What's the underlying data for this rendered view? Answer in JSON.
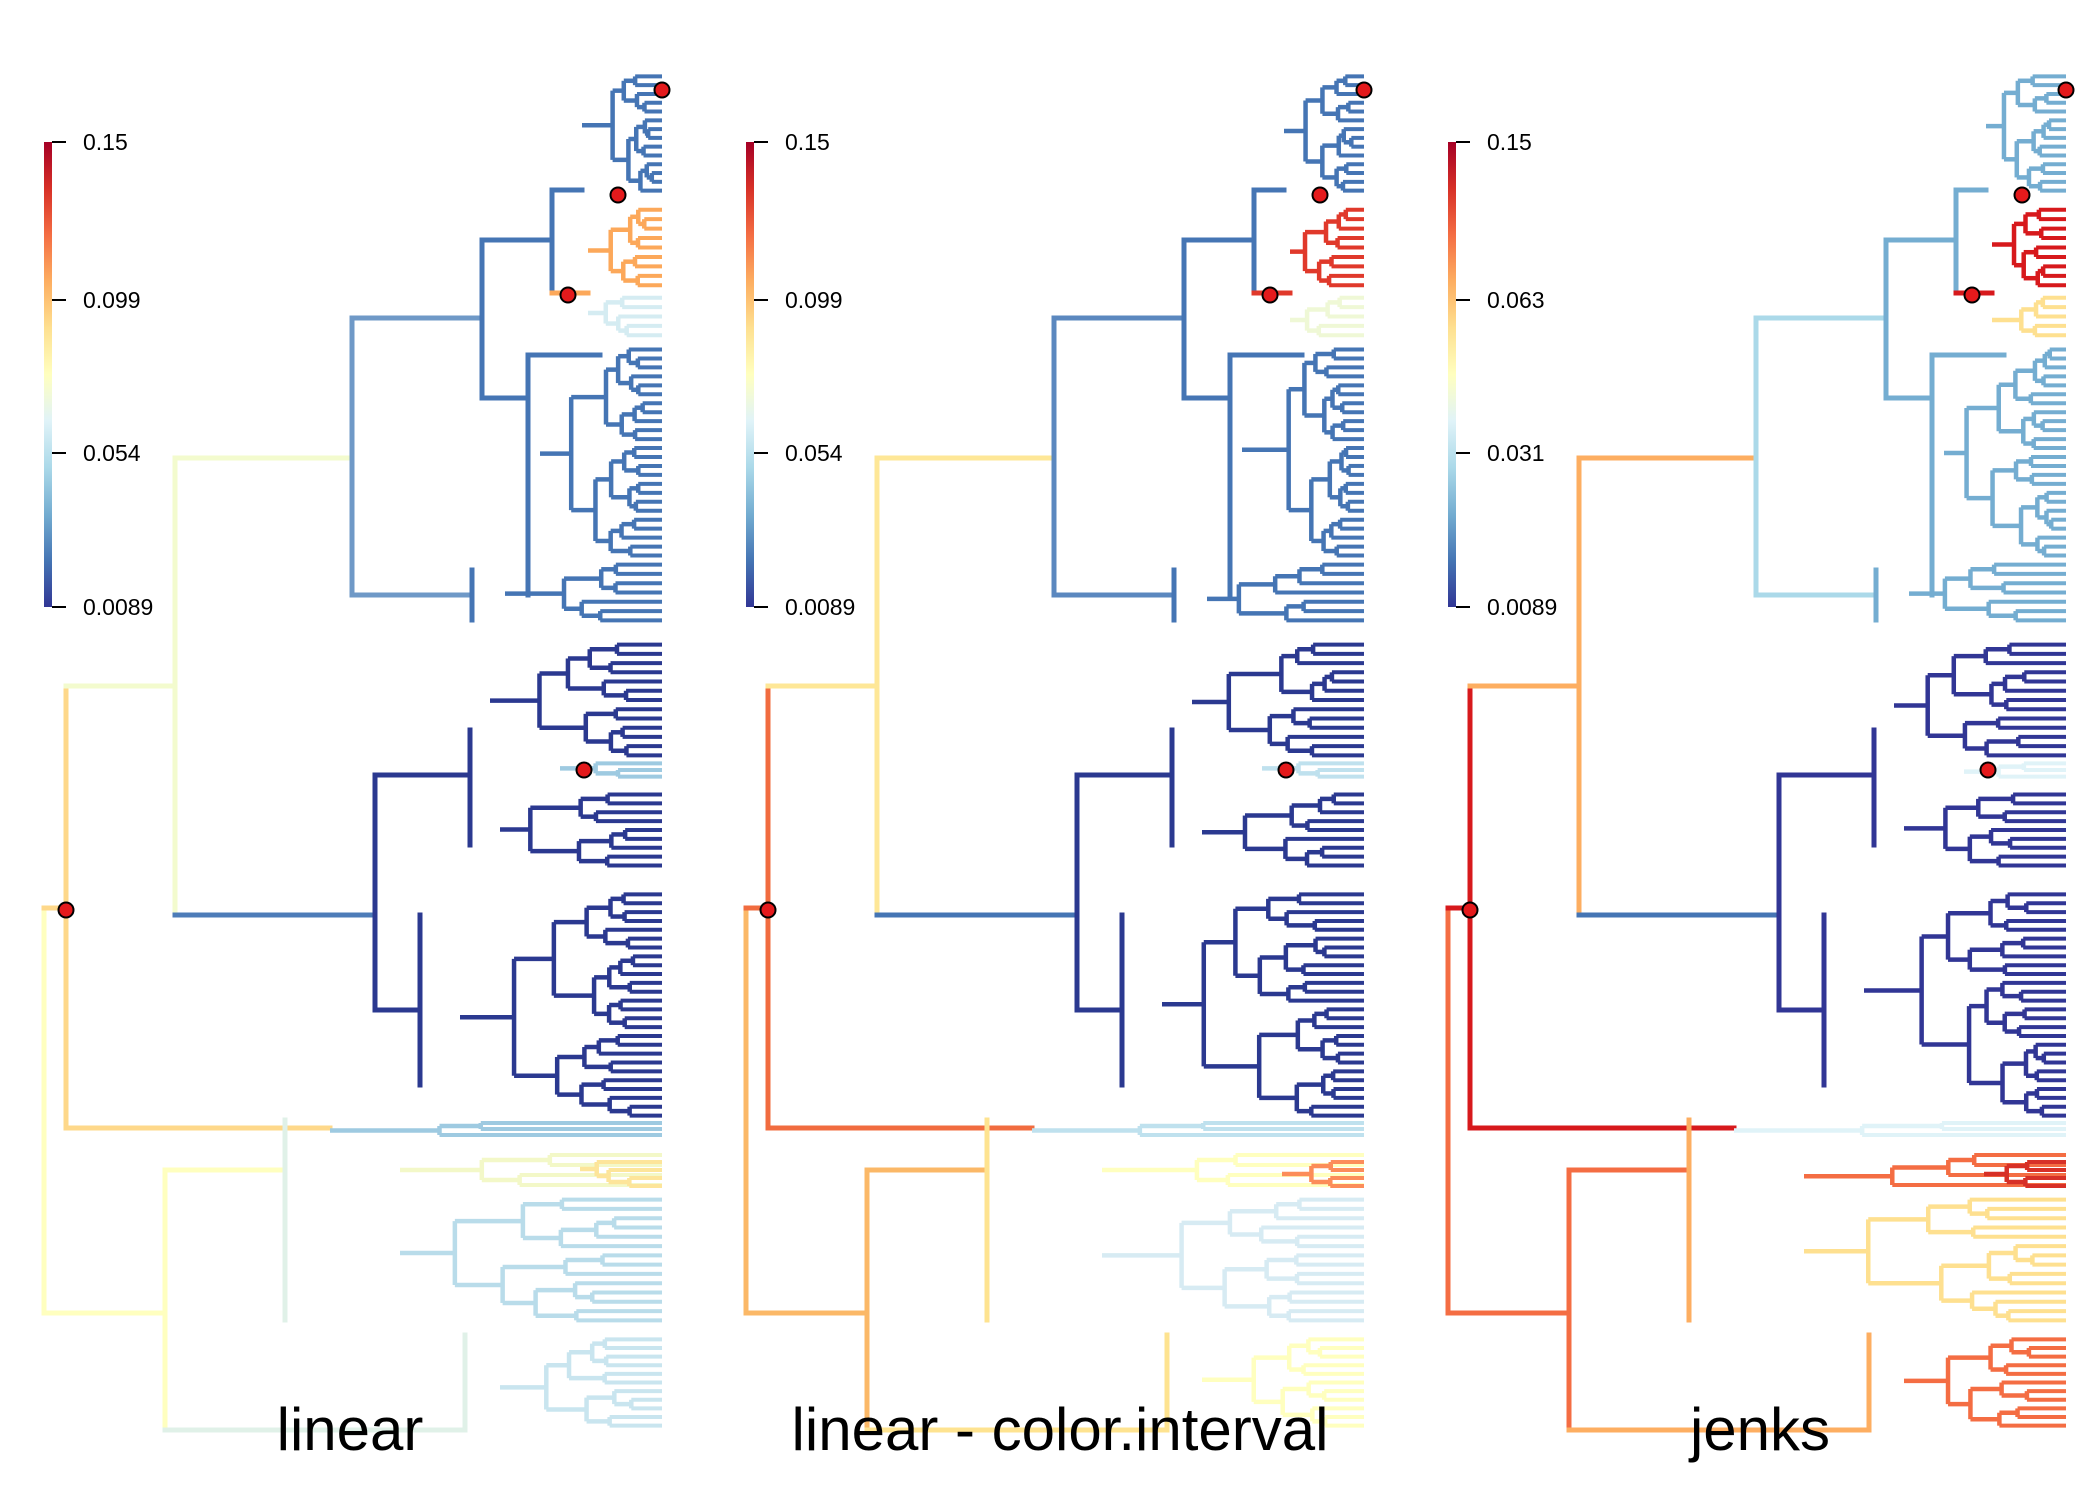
{
  "panels": [
    {
      "id": "linear",
      "title": "linear",
      "legend_ticks": [
        "0.15",
        "0.099",
        "0.054",
        "0.0089"
      ],
      "colors": {
        "root": "#fed88a",
        "upper_spine": "#f3fbce",
        "bottom_clade": "#ffffbf",
        "clade_top": "#6f99c7",
        "clade_orange": "#fca85a",
        "clade_pale": "#d5ecf2",
        "clade_blue": "#4575b4",
        "clade_mid": "#4d7cb8",
        "clade_navy": "#2b3990",
        "clade_thin": "#9ecae1",
        "clade_yellow": "#f3f8c8",
        "clade_yellow_tips": "#fde59a",
        "clade_light": "#b9dcea",
        "clade_bot_a": "#e0f1e8",
        "clade_bot_b": "#c9e5ef"
      }
    },
    {
      "id": "linear-color-interval",
      "title": "linear - color.interval",
      "legend_ticks": [
        "0.15",
        "0.099",
        "0.054",
        "0.0089"
      ],
      "colors": {
        "root": "#f16c3f",
        "upper_spine": "#fee797",
        "bottom_clade": "#fbb867",
        "clade_top": "#5b88bf",
        "clade_orange": "#e0392b",
        "clade_pale": "#eff8d6",
        "clade_blue": "#4575b4",
        "clade_mid": "#4575b4",
        "clade_navy": "#2b3990",
        "clade_thin": "#bfe1ee",
        "clade_yellow": "#ffffbf",
        "clade_yellow_tips": "#fc8d59",
        "clade_light": "#d7ebf3",
        "clade_bot_a": "#fee390",
        "clade_bot_b": "#ffffbf"
      }
    },
    {
      "id": "jenks",
      "title": "jenks",
      "legend_ticks": [
        "0.15",
        "0.063",
        "0.031",
        "0.0089"
      ],
      "colors": {
        "root": "#d7191c",
        "upper_spine": "#fdae61",
        "bottom_clade": "#f46d43",
        "clade_top": "#abd9e9",
        "clade_orange": "#d7191c",
        "clade_pale": "#fee090",
        "clade_blue": "#74add1",
        "clade_mid": "#4575b4",
        "clade_navy": "#313695",
        "clade_thin": "#e0f3f8",
        "clade_yellow": "#f46d43",
        "clade_yellow_tips": "#d73027",
        "clade_light": "#fee090",
        "clade_bot_a": "#fdae61",
        "clade_bot_b": "#f46d43"
      }
    }
  ],
  "legend_gradient": [
    "#313695",
    "#4575b4",
    "#74add1",
    "#abd9e9",
    "#e0f3f8",
    "#ffffbf",
    "#fee090",
    "#fdae61",
    "#f46d43",
    "#d73027",
    "#a50026"
  ],
  "marker_color": "#e41a1c"
}
